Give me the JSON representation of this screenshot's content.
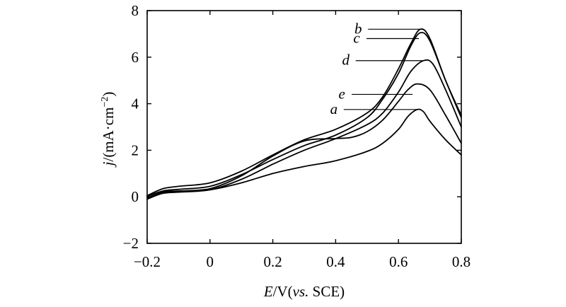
{
  "chart_data": {
    "type": "line",
    "title": "",
    "xlabel": {
      "var": "E",
      "rest": "/V(",
      "vs": "vs.",
      "ref": " SCE)"
    },
    "ylabel": {
      "var": "j",
      "rest": "/(mA·cm",
      "exp": "−2",
      "close": ")"
    },
    "xlim": [
      -0.2,
      0.8
    ],
    "ylim": [
      -2,
      8
    ],
    "xticks": [
      -0.2,
      0,
      0.2,
      0.4,
      0.6,
      0.8
    ],
    "xtick_labels": [
      "−0.2",
      "0",
      "0.2",
      "0.4",
      "0.6",
      "0.8"
    ],
    "yticks": [
      -2,
      0,
      2,
      4,
      6,
      8
    ],
    "ytick_labels": [
      "−2",
      "0",
      "2",
      "4",
      "6",
      "8"
    ],
    "grid": false,
    "series": [
      {
        "name": "a",
        "x": [
          -0.2,
          -0.15,
          -0.1,
          0.0,
          0.1,
          0.2,
          0.3,
          0.4,
          0.5,
          0.55,
          0.6,
          0.63,
          0.66,
          0.68,
          0.7,
          0.75,
          0.8
        ],
        "y": [
          -0.1,
          0.15,
          0.22,
          0.3,
          0.6,
          1.0,
          1.3,
          1.55,
          1.95,
          2.3,
          2.9,
          3.45,
          3.75,
          3.65,
          3.25,
          2.45,
          1.8
        ]
      },
      {
        "name": "b",
        "x": [
          -0.2,
          -0.15,
          -0.1,
          0.0,
          0.1,
          0.2,
          0.3,
          0.4,
          0.5,
          0.55,
          0.6,
          0.64,
          0.67,
          0.7,
          0.75,
          0.8
        ],
        "y": [
          0.05,
          0.35,
          0.45,
          0.6,
          1.1,
          1.8,
          2.45,
          2.9,
          3.6,
          4.3,
          5.5,
          6.6,
          7.2,
          6.8,
          5.0,
          3.5
        ]
      },
      {
        "name": "c",
        "x": [
          -0.2,
          -0.15,
          -0.1,
          0.0,
          0.1,
          0.2,
          0.3,
          0.4,
          0.5,
          0.55,
          0.6,
          0.64,
          0.67,
          0.7,
          0.75,
          0.8
        ],
        "y": [
          0.02,
          0.25,
          0.32,
          0.45,
          0.95,
          1.6,
          2.2,
          2.65,
          3.4,
          4.2,
          5.3,
          6.5,
          7.05,
          6.7,
          5.0,
          3.4
        ]
      },
      {
        "name": "d",
        "x": [
          -0.2,
          -0.15,
          -0.1,
          0.0,
          0.1,
          0.2,
          0.3,
          0.4,
          0.5,
          0.55,
          0.6,
          0.64,
          0.68,
          0.71,
          0.75,
          0.8
        ],
        "y": [
          -0.05,
          0.15,
          0.2,
          0.3,
          0.75,
          1.4,
          2.0,
          2.5,
          3.1,
          3.6,
          4.5,
          5.4,
          5.85,
          5.7,
          4.6,
          3.0
        ]
      },
      {
        "name": "e",
        "x": [
          -0.2,
          -0.15,
          -0.1,
          0.0,
          0.1,
          0.2,
          0.3,
          0.4,
          0.45,
          0.5,
          0.55,
          0.6,
          0.63,
          0.66,
          0.7,
          0.75,
          0.8
        ],
        "y": [
          -0.05,
          0.2,
          0.25,
          0.35,
          0.9,
          1.75,
          2.4,
          2.5,
          2.55,
          2.8,
          3.3,
          4.1,
          4.6,
          4.85,
          4.6,
          3.5,
          2.3
        ]
      }
    ],
    "annotations": [
      {
        "label": "b",
        "x": 0.67,
        "y": 7.2
      },
      {
        "label": "c",
        "x": 0.665,
        "y": 6.8
      },
      {
        "label": "d",
        "x": 0.68,
        "y": 5.85
      },
      {
        "label": "e",
        "x": 0.645,
        "y": 4.4
      },
      {
        "label": "a",
        "x": 0.66,
        "y": 3.75
      }
    ]
  }
}
